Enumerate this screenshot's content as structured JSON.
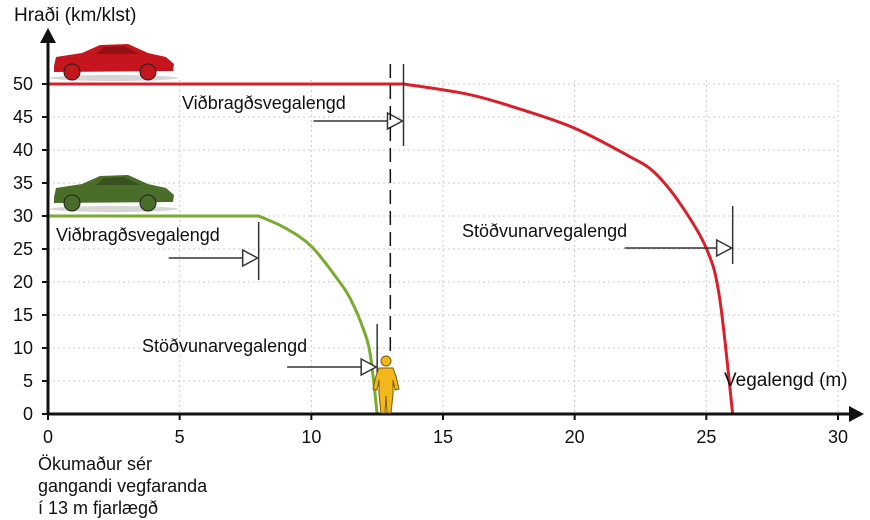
{
  "chart_data": {
    "type": "line",
    "title": "",
    "xlabel": "Vegalengd (m)",
    "ylabel": "Hraði (km/klst)",
    "xlim": [
      0,
      30
    ],
    "ylim": [
      0,
      50
    ],
    "x_ticks": [
      0,
      5,
      10,
      15,
      20,
      25,
      30
    ],
    "y_ticks": [
      0,
      5,
      10,
      15,
      20,
      25,
      30,
      35,
      40,
      45,
      50
    ],
    "grid": true,
    "legend": "none",
    "series": [
      {
        "color": "#d8202a",
        "reaction_end": 13.5,
        "points": [
          [
            0,
            50
          ],
          [
            13.5,
            50
          ],
          [
            16,
            48.4
          ],
          [
            18,
            46.1
          ],
          [
            20,
            43.3
          ],
          [
            22,
            39.2
          ],
          [
            23,
            36.7
          ],
          [
            24,
            31.9
          ],
          [
            25,
            25.1
          ],
          [
            25.5,
            17.7
          ],
          [
            26,
            0
          ]
        ]
      },
      {
        "color": "#7aab2f",
        "reaction_end": 8,
        "points": [
          [
            0,
            30
          ],
          [
            8,
            30
          ],
          [
            9,
            28.2
          ],
          [
            10,
            25.4
          ],
          [
            11,
            20.4
          ],
          [
            11.5,
            17.3
          ],
          [
            12,
            12.6
          ],
          [
            12.25,
            8.7
          ],
          [
            12.5,
            0
          ]
        ]
      }
    ],
    "pedestrian_x": 13,
    "annotations": {
      "red_reaction": "Viðbragðsvegalengd",
      "red_stopping": "Stöðvunarvegalengd",
      "green_reaction": "Viðbragðsvegalengd",
      "green_stopping": "Stöðvunarvegalengd",
      "caption": [
        "Ökumaður sér",
        "gangandi vegfaranda",
        "í 13 m fjarlægð"
      ]
    },
    "cars": [
      {
        "icon": "red-car-icon",
        "color": "#c4161c",
        "speed": 50
      },
      {
        "icon": "green-car-icon",
        "color": "#4a6d2a",
        "speed": 30
      }
    ],
    "pedestrian_icon": "pedestrian-icon",
    "pedestrian_color": "#f2b71a",
    "axis_color": "#111111",
    "arrow_color": "#333333"
  }
}
